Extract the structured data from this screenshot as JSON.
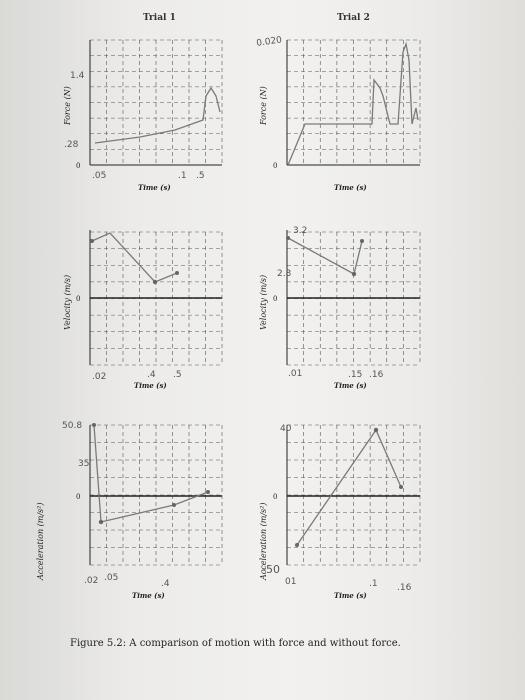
{
  "column_titles": [
    "Trial 1",
    "Trial 2"
  ],
  "axis_labels": {
    "force": "Force (N)",
    "velocity": "Velocity (m/s)",
    "acceleration": "Acceleration (m/s²)",
    "time": "Time (s)",
    "zero": "0"
  },
  "handwritten": {
    "t1_force_top": "1.4",
    "t1_force_low": ".28",
    "t1_force_x1": ".05",
    "t1_force_x2": ".1",
    "t1_force_x3": ".5",
    "t2_force_top": "0.020",
    "t1_vel_x1": ".02",
    "t1_vel_x2": ".4",
    "t1_vel_x3": ".5",
    "t2_vel_top": "3.2",
    "t2_vel_mid": "2.3",
    "t2_vel_x1": ".01",
    "t2_vel_x2": ".15",
    "t2_vel_x3": ".16",
    "t1_acc_top": "50.8",
    "t1_acc_mid": "35",
    "t1_acc_x1": ".02",
    "t1_acc_x2": ".05",
    "t1_acc_x3": ".4",
    "t2_acc_top": "40",
    "t2_acc_bottom": "-50",
    "t2_acc_x1": "01",
    "t2_acc_x2": ".1",
    "t2_acc_x3": ".16"
  },
  "caption": "Figure 5.2: A comparison of motion with force and without force.",
  "colors": {
    "grid": "#555555",
    "pencil": "#7a7a7a",
    "paper": "#f2f1ef"
  }
}
